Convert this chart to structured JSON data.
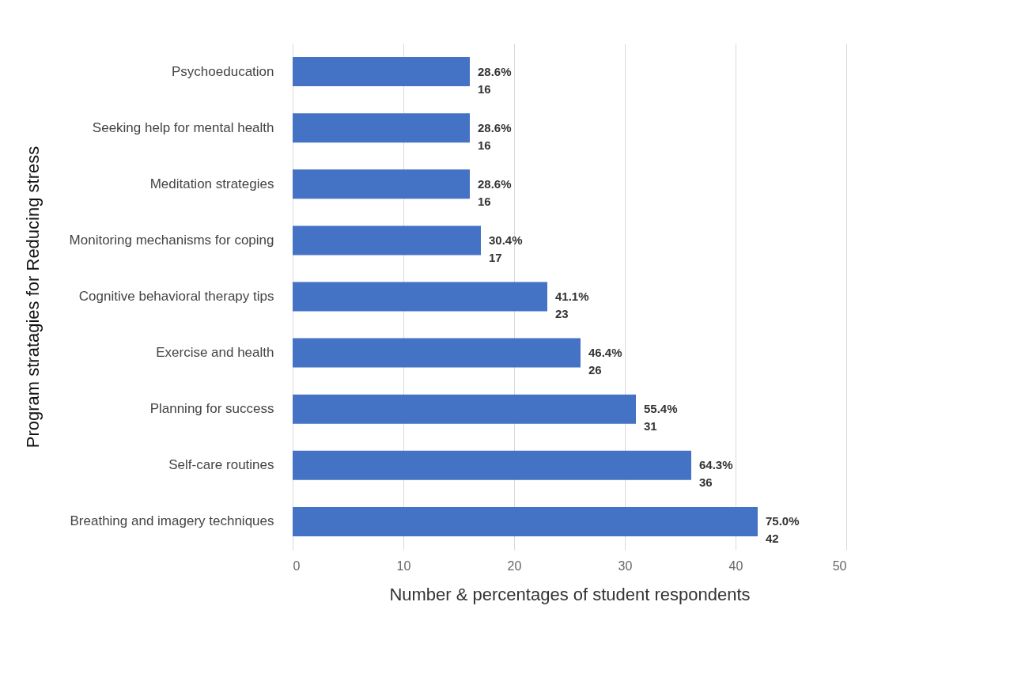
{
  "chart_data": {
    "type": "bar",
    "orientation": "horizontal",
    "ylabel": "Program stratagies for Reducing stress",
    "xlabel": "Number & percentages  of  student respondents",
    "categories": [
      "Psychoeducation",
      "Seeking help for mental health",
      "Meditation strategies",
      "Monitoring mechanisms for coping",
      "Cognitive behavioral therapy tips",
      "Exercise and health",
      "Planning for success",
      "Self-care routines",
      "Breathing and imagery techniques"
    ],
    "values": [
      16,
      16,
      16,
      17,
      23,
      26,
      31,
      36,
      42
    ],
    "value_labels": [
      "28.6%\n16",
      "28.6%\n16",
      "28.6%\n16",
      "30.4%\n17",
      "41.1%\n23",
      "46.4%\n26",
      "55.4%\n31",
      "64.3%\n36",
      "75.0%\n42"
    ],
    "color": "#4472c4",
    "xlim": [
      0,
      50
    ],
    "xticks": [
      0,
      10,
      20,
      30,
      40,
      50
    ],
    "grid": "x"
  }
}
